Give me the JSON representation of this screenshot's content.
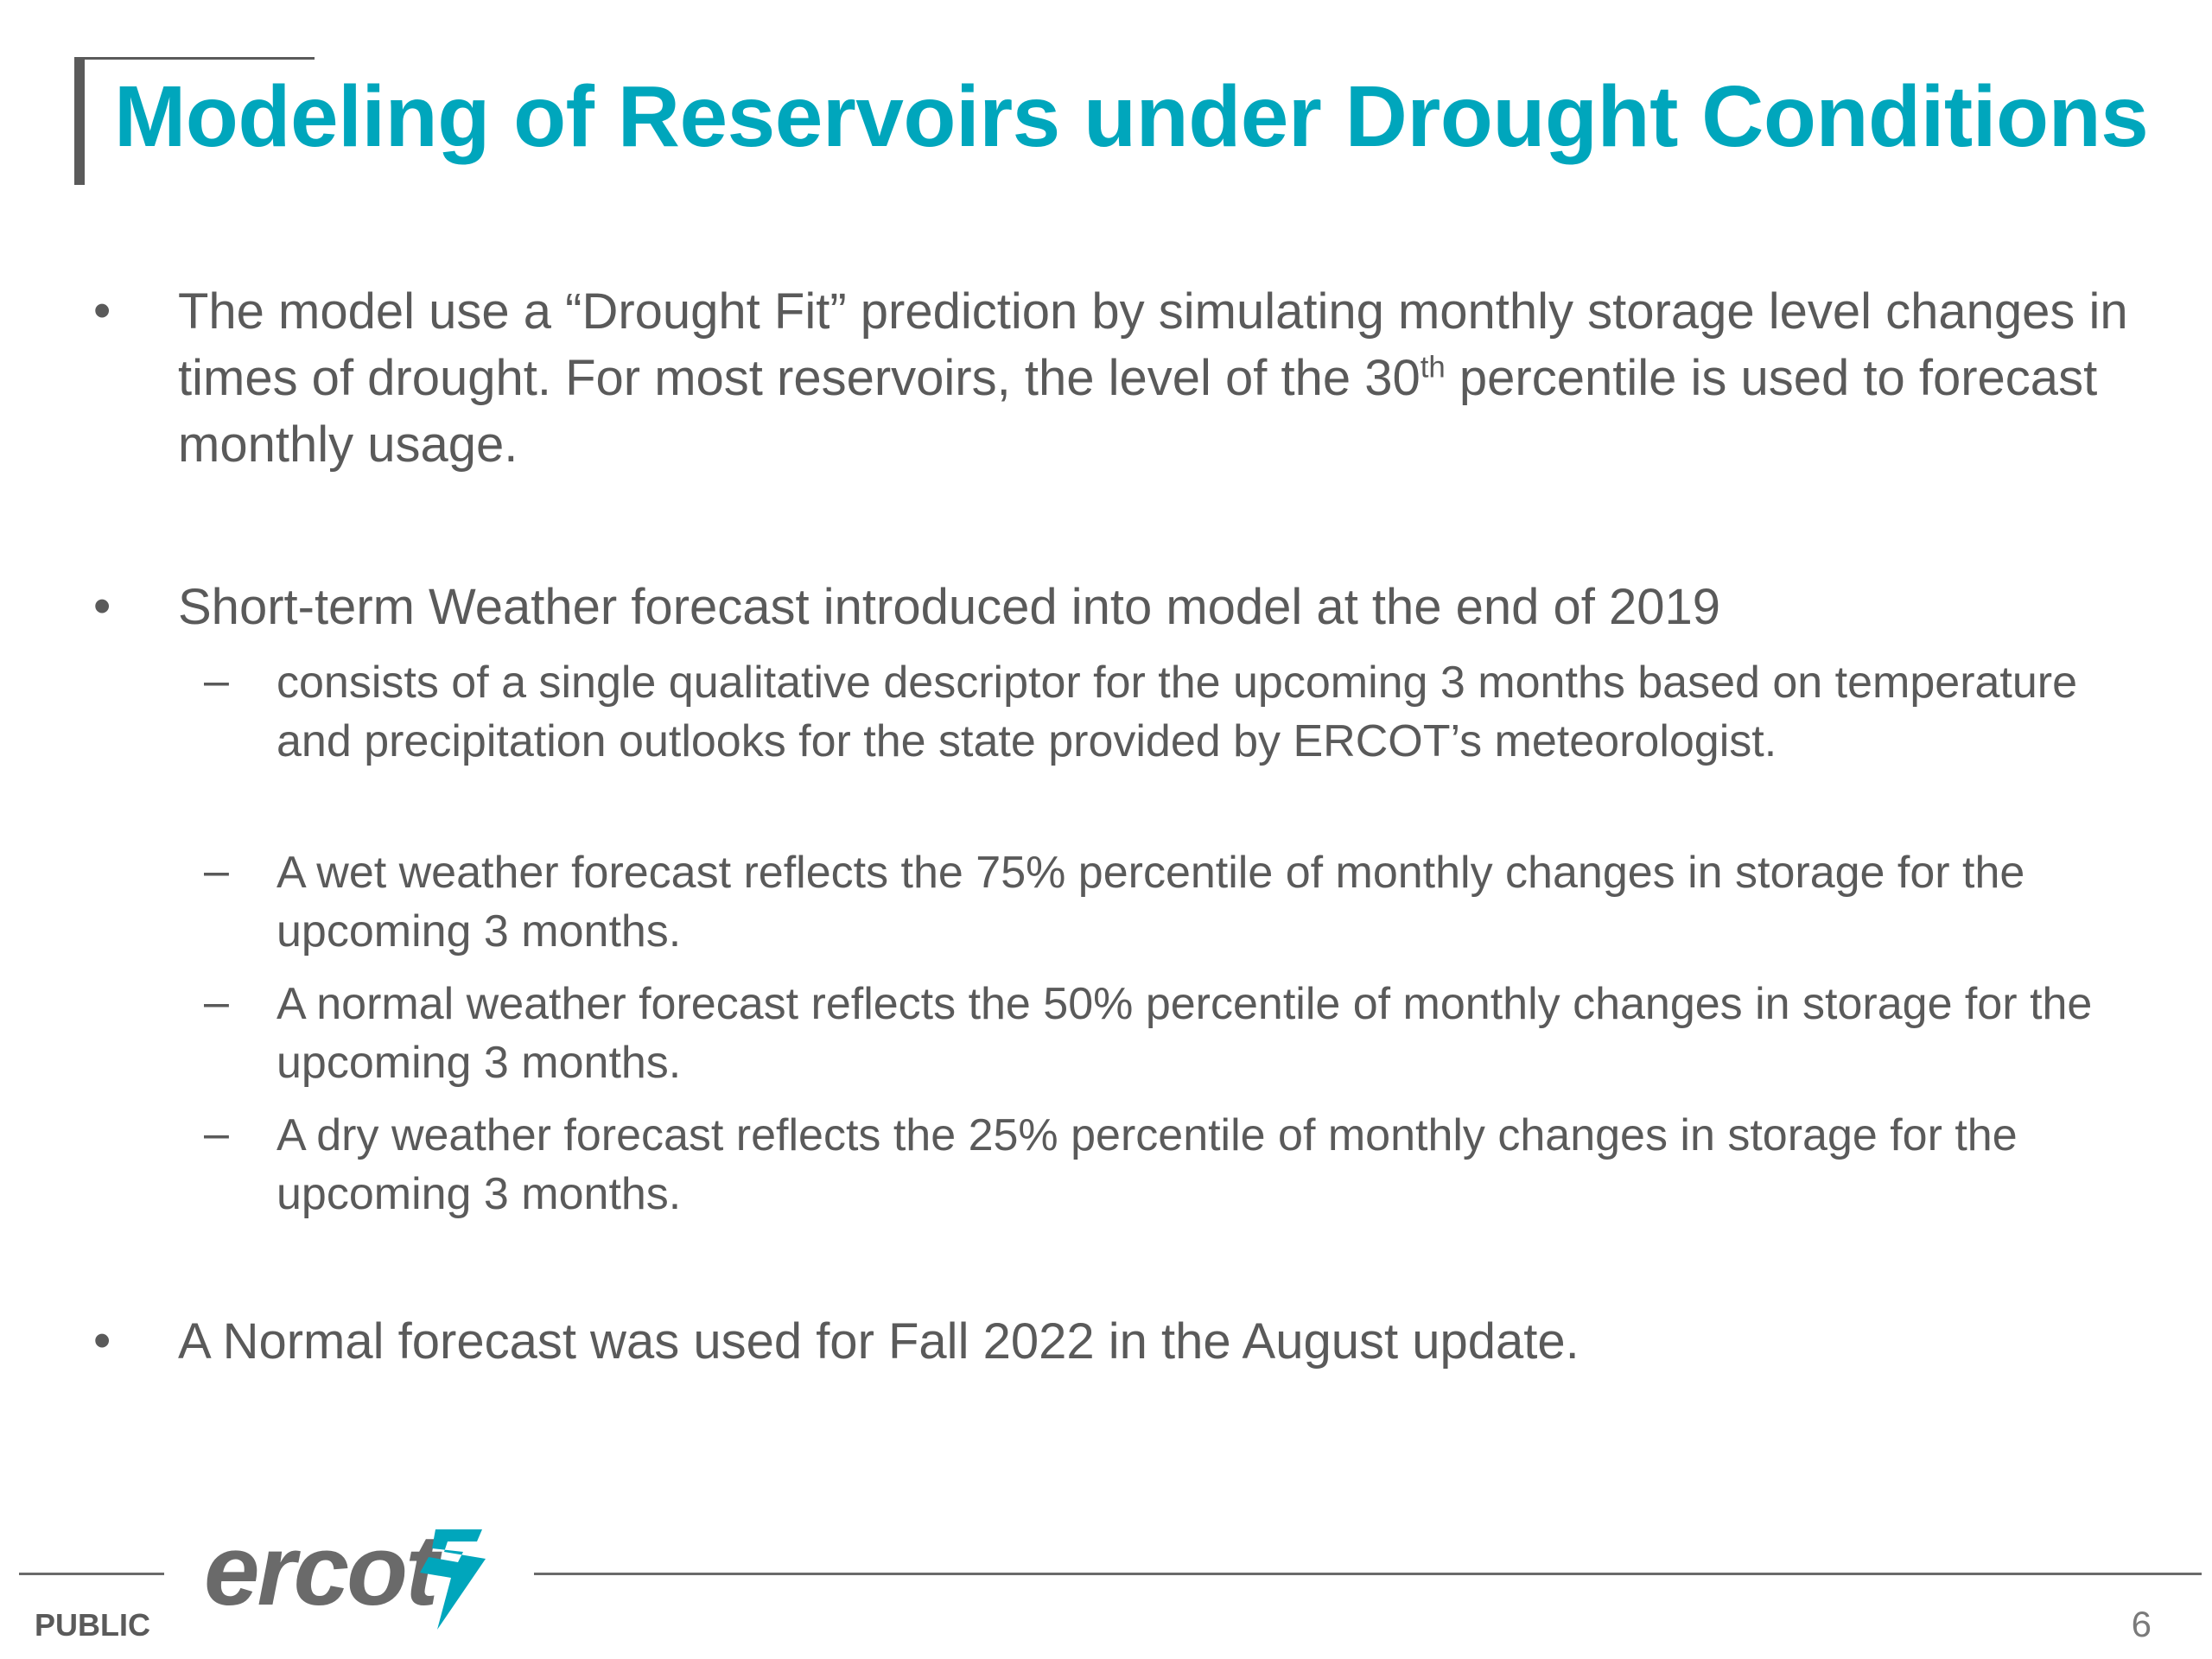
{
  "slide": {
    "title": "Modeling of Reservoirs under Drought Conditions",
    "bullets": [
      {
        "text_part1": "The model use a “Drought Fit” prediction by simulating monthly storage level changes in times of drought. For most reservoirs, the level of the 30",
        "superscript": "th",
        "text_part2": " percentile is used to forecast monthly usage."
      },
      {
        "text": "Short-term Weather forecast introduced into model at the end of 2019",
        "sub_items": [
          "consists of a single qualitative descriptor for the upcoming 3 months based on temperature and precipitation outlooks for the state provided by ERCOT’s meteorologist.",
          "A wet weather forecast reflects the 75% percentile of monthly changes in storage for the upcoming 3 months.",
          "A normal weather forecast reflects the 50% percentile of monthly changes in storage for the upcoming 3 months.",
          "A dry weather forecast reflects the 25% percentile of monthly changes in storage for the upcoming 3 months."
        ]
      },
      {
        "text": "A Normal forecast was used for Fall 2022 in the August update."
      }
    ],
    "bullet_symbol": "•",
    "dash_symbol": "–"
  },
  "footer": {
    "logo_text": "ercot",
    "classification": "PUBLIC",
    "page_number": "6"
  },
  "colors": {
    "title": "#00a6bc",
    "body_text": "#5a5a5a",
    "logo": "#6a6a6a",
    "logo_mark": "#00a6bc"
  },
  "icons": {
    "logo_mark": "ercot-lightning-mark-icon"
  }
}
